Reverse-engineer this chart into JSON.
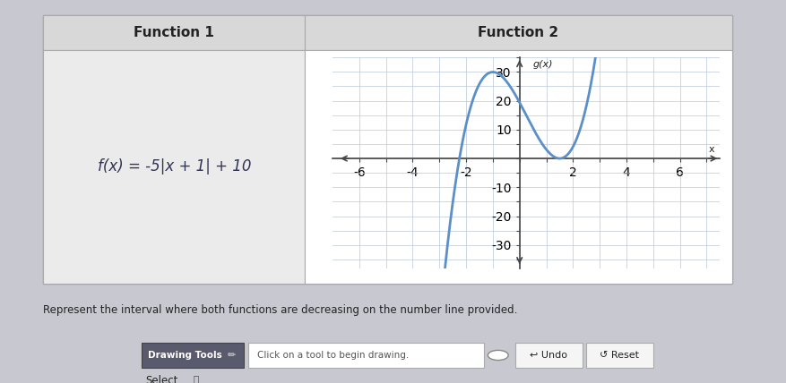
{
  "title_func1": "Function 1",
  "title_func2": "Function 2",
  "func1_equation": "f(x) = -5|x + 1| + 10",
  "func2_ylabel": "g(x)",
  "func2_xlabel": "x",
  "xlim": [
    -7,
    7.5
  ],
  "ylim": [
    -38,
    35
  ],
  "xticks_labeled": [
    -6,
    -4,
    -2,
    2,
    4,
    6
  ],
  "yticks_labeled": [
    -30,
    -20,
    -10,
    10,
    20,
    30
  ],
  "curve_color": "#5b8fc9",
  "grid_color": "#b8c8d8",
  "axis_color": "#444444",
  "bg_outer": "#c8c8d0",
  "bg_table": "#ffffff",
  "bg_header": "#d8d8d8",
  "bg_func1": "#ebebeb",
  "bg_func2": "#ffffff",
  "bottom_text": "Represent the interval where both functions are decreasing on the number line provided.",
  "toolbar_bg": "#5a5a6e",
  "toolbar_text": "Drawing Tools",
  "click_text": "Click on a tool to begin drawing.",
  "undo_text": "Undo",
  "reset_text": "Reset",
  "select_text": "Select",
  "curve_lw": 2.0,
  "cubic_a": 3.833,
  "cubic_b": -2.875,
  "cubic_c": -17.25,
  "cubic_d": 19.4
}
